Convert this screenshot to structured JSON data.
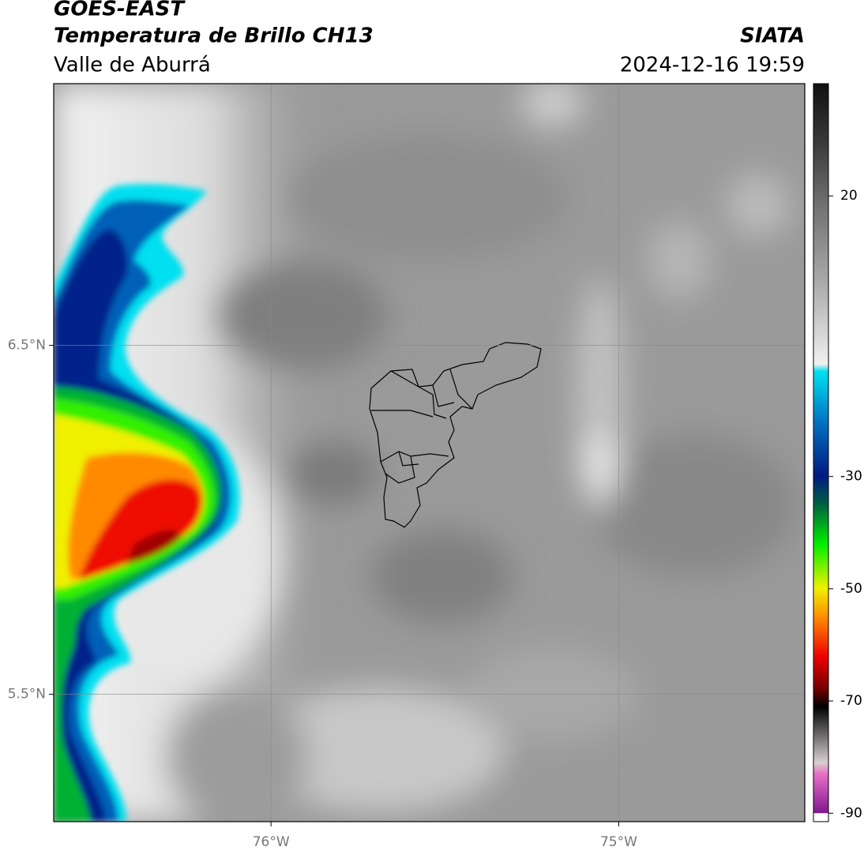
{
  "header": {
    "title": "GOES-EAST",
    "subtitle": "Temperatura de Brillo CH13",
    "region": "Valle de Aburrá",
    "source": "SIATA",
    "datetime": "2024-12-16 19:59"
  },
  "map": {
    "xlim": [
      -76.625,
      -74.465
    ],
    "ylim": [
      5.135,
      7.25
    ],
    "xticks": [
      {
        "value": -76,
        "label": "76°W"
      },
      {
        "value": -75,
        "label": "75°W"
      }
    ],
    "yticks": [
      {
        "value": 6.5,
        "label": "6.5°N"
      },
      {
        "value": 5.5,
        "label": "5.5°N"
      }
    ],
    "grid": true
  },
  "colorbar": {
    "lim": [
      -91.5,
      40
    ],
    "ticks": [
      20,
      -30,
      -50,
      -70,
      -90
    ]
  }
}
